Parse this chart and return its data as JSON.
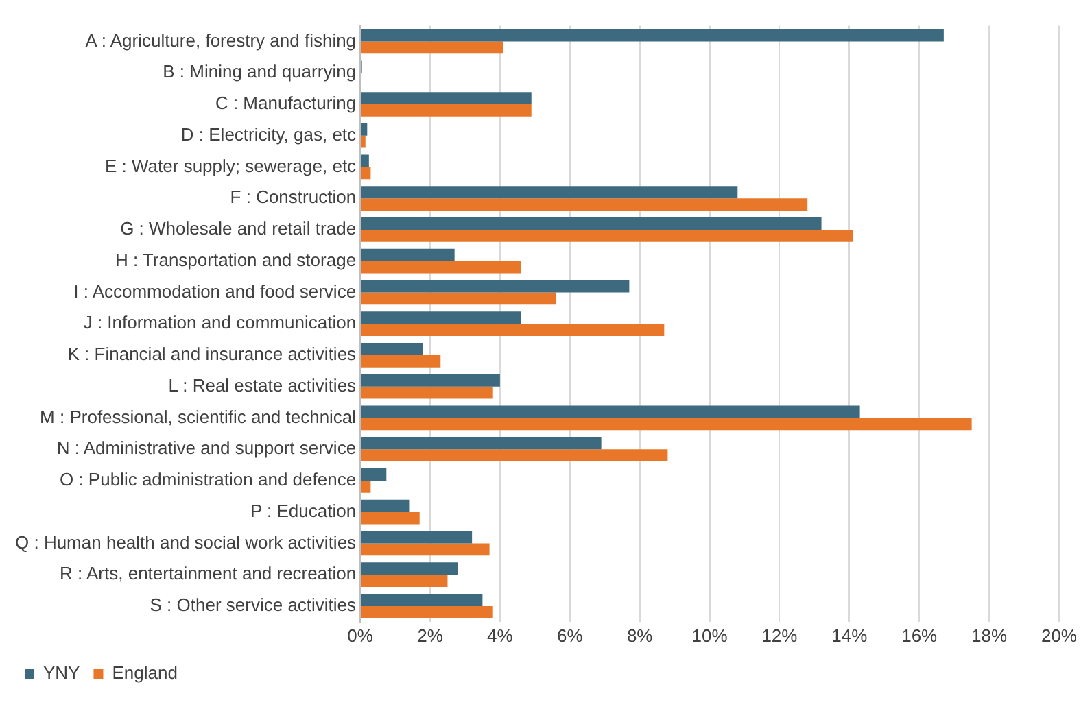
{
  "chart_data": {
    "type": "bar",
    "orientation": "horizontal",
    "categories": [
      "A : Agriculture, forestry and fishing",
      "B : Mining and quarrying",
      "C : Manufacturing",
      "D : Electricity, gas, etc",
      "E : Water supply; sewerage, etc",
      "F : Construction",
      "G : Wholesale and retail trade",
      "H : Transportation and storage",
      "I : Accommodation and food service",
      "J : Information and communication",
      "K : Financial and insurance activities",
      "L : Real estate activities",
      "M : Professional, scientific and technical",
      "N : Administrative and support service",
      "O : Public administration and defence",
      "P : Education",
      "Q : Human health and social work activities",
      "R : Arts, entertainment and recreation",
      "S : Other service activities"
    ],
    "series": [
      {
        "name": "YNY",
        "color": "#3d6a7e",
        "values": [
          16.7,
          0.05,
          4.9,
          0.2,
          0.25,
          10.8,
          13.2,
          2.7,
          7.7,
          4.6,
          1.8,
          4.0,
          14.3,
          6.9,
          0.75,
          1.4,
          3.2,
          2.8,
          3.5
        ]
      },
      {
        "name": "England",
        "color": "#e8772a",
        "values": [
          4.1,
          null,
          4.9,
          0.15,
          0.3,
          12.8,
          14.1,
          4.6,
          5.6,
          8.7,
          2.3,
          3.8,
          17.5,
          8.8,
          0.3,
          1.7,
          3.7,
          2.5,
          3.8
        ]
      }
    ],
    "xlim": [
      0,
      20
    ],
    "xticks": [
      {
        "value": 0,
        "label": "0%"
      },
      {
        "value": 2,
        "label": "2%"
      },
      {
        "value": 4,
        "label": "4%"
      },
      {
        "value": 6,
        "label": "6%"
      },
      {
        "value": 8,
        "label": "8%"
      },
      {
        "value": 10,
        "label": "10%"
      },
      {
        "value": 12,
        "label": "12%"
      },
      {
        "value": 14,
        "label": "14%"
      },
      {
        "value": 16,
        "label": "16%"
      },
      {
        "value": 18,
        "label": "18%"
      },
      {
        "value": 20,
        "label": "20%"
      }
    ],
    "grid": "x",
    "legend": "bottom left"
  }
}
